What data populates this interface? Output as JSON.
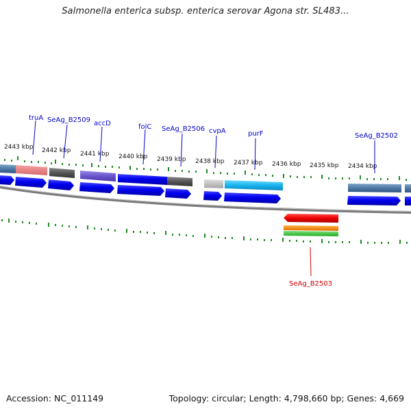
{
  "title": "Salmonella enterica subsp. enterica serovar Agona str. SL483...",
  "footer": {
    "accession": "Accession: NC_011149",
    "summary": "Topology: circular; Length: 4,798,660 bp; Genes: 4,669"
  },
  "ruler_labels": [
    "2443 kbp",
    "2442 kbp",
    "2441 kbp",
    "2440 kbp",
    "2439 kbp",
    "2438 kbp",
    "2437 kbp",
    "2436 kbp",
    "2435 kbp",
    "2434 kbp"
  ],
  "gene_labels": [
    {
      "text": "truA",
      "color": "#0000cc"
    },
    {
      "text": "SeAg_B2509",
      "color": "#0000cc"
    },
    {
      "text": "accD",
      "color": "#0000cc"
    },
    {
      "text": "folC",
      "color": "#0000cc"
    },
    {
      "text": "SeAg_B2506",
      "color": "#0000cc"
    },
    {
      "text": "cvpA",
      "color": "#0000cc"
    },
    {
      "text": "purF",
      "color": "#0000cc"
    },
    {
      "text": "SeAg_B2502",
      "color": "#0000cc"
    },
    {
      "text": "SeAg_B2503",
      "color": "#cc0000"
    }
  ],
  "colors": {
    "backbone": "#7a7a7a",
    "tick": "#1e8a1e",
    "cds": "#0000ee"
  }
}
